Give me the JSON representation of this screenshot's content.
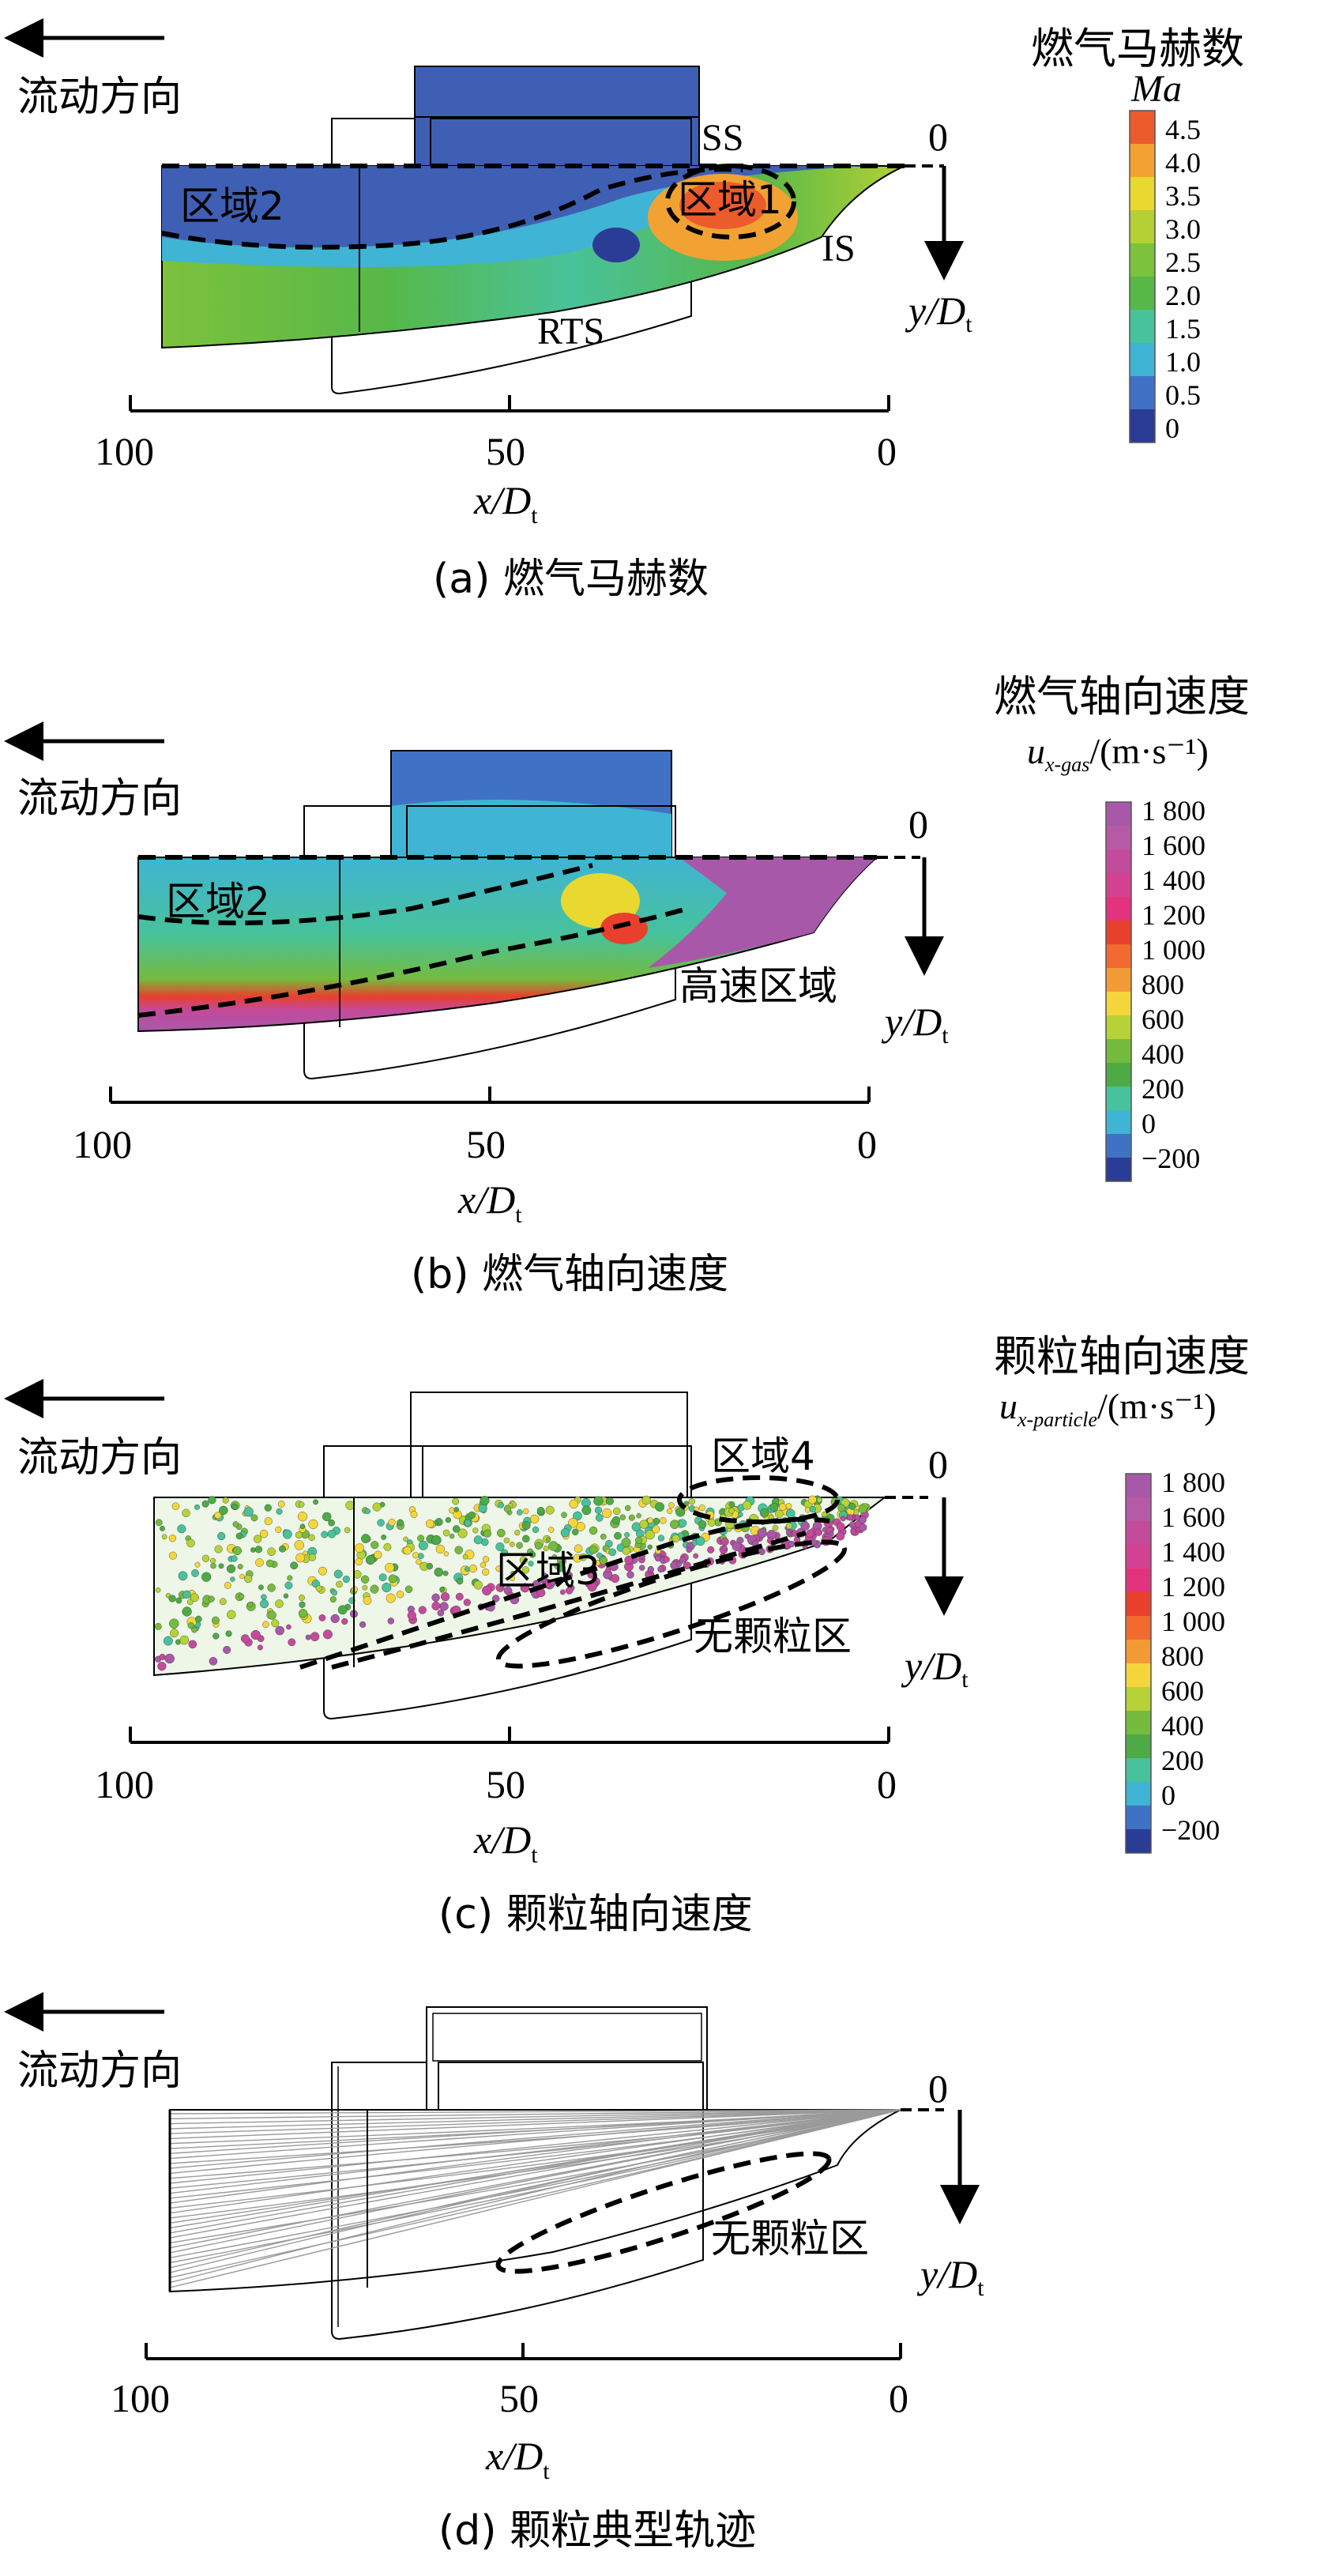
{
  "common": {
    "flow_direction": "流动方向",
    "x_axis_var": "x/D",
    "x_axis_sub": "t",
    "y_axis_var": "y/D",
    "y_axis_sub": "t",
    "x_ticks": [
      "100",
      "50",
      "0"
    ],
    "y_zero": "0"
  },
  "panels": [
    {
      "id": "a",
      "caption": "(a) 燃气马赫数",
      "legend_title": "燃气马赫数",
      "legend_var": "Ma",
      "legend_sub": "",
      "legend_unit": "",
      "legend_ticks": [
        "4.5",
        "4.0",
        "3.5",
        "3.0",
        "2.5",
        "2.0",
        "1.5",
        "1.0",
        "0.5",
        "0"
      ],
      "labels": {
        "region_a": "区域2",
        "region_b": "区域1",
        "ss": "SS",
        "is": "IS",
        "rts": "RTS"
      }
    },
    {
      "id": "b",
      "caption": "(b) 燃气轴向速度",
      "legend_title": "燃气轴向速度",
      "legend_var": "u",
      "legend_sub": "x-gas",
      "legend_unit": "/(m·s⁻¹)",
      "legend_ticks": [
        "1 800",
        "1 600",
        "1 400",
        "1 200",
        "1 000",
        "800",
        "600",
        "400",
        "200",
        "0",
        "−200"
      ],
      "labels": {
        "region_a": "区域2",
        "high_speed": "高速区域"
      }
    },
    {
      "id": "c",
      "caption": "(c) 颗粒轴向速度",
      "legend_title": "颗粒轴向速度",
      "legend_var": "u",
      "legend_sub": "x-particle",
      "legend_unit": "/(m·s⁻¹)",
      "legend_ticks": [
        "1 800",
        "1 600",
        "1 400",
        "1 200",
        "1 000",
        "800",
        "600",
        "400",
        "200",
        "0",
        "−200"
      ],
      "labels": {
        "region_a": "区域4",
        "region_b": "区域3",
        "no_particle": "无颗粒区"
      }
    },
    {
      "id": "d",
      "caption": "(d) 颗粒典型轨迹",
      "labels": {
        "no_particle": "无颗粒区"
      }
    }
  ],
  "colors": {
    "mach_scale": [
      "#2b3c96",
      "#3f72c4",
      "#3fb4d4",
      "#48c29a",
      "#57b848",
      "#7cc23c",
      "#b4d034",
      "#e8d830",
      "#f2a233",
      "#ec5b2c"
    ],
    "velocity_scale": [
      "#2b3c96",
      "#3f72c4",
      "#3fb4d4",
      "#48c29a",
      "#4daa45",
      "#74bb3e",
      "#b6d236",
      "#f5d63a",
      "#f29a36",
      "#e8402c",
      "#e3327e",
      "#c44a9c",
      "#a858a8"
    ]
  }
}
